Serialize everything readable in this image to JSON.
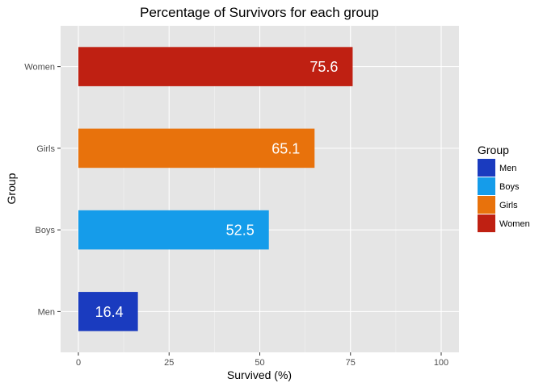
{
  "chart_data": {
    "type": "bar",
    "orientation": "horizontal",
    "title": "Percentage of Survivors for each group",
    "xlabel": "Survived (%)",
    "ylabel": "Group",
    "categories": [
      "Men",
      "Boys",
      "Girls",
      "Women"
    ],
    "values": [
      16.4,
      52.5,
      65.1,
      75.6
    ],
    "bar_labels": [
      "16.4",
      "52.5",
      "65.1",
      "75.6"
    ],
    "colors": [
      "#1a3bbf",
      "#159cea",
      "#e8720c",
      "#bf2012"
    ],
    "xlim": [
      0,
      100
    ],
    "xticks": [
      0,
      25,
      50,
      75,
      100
    ],
    "xtick_labels": [
      "0",
      "25",
      "50",
      "75",
      "100"
    ],
    "grid": true,
    "legend": {
      "title": "Group",
      "position": "right",
      "entries": [
        "Men",
        "Boys",
        "Girls",
        "Women"
      ]
    }
  }
}
